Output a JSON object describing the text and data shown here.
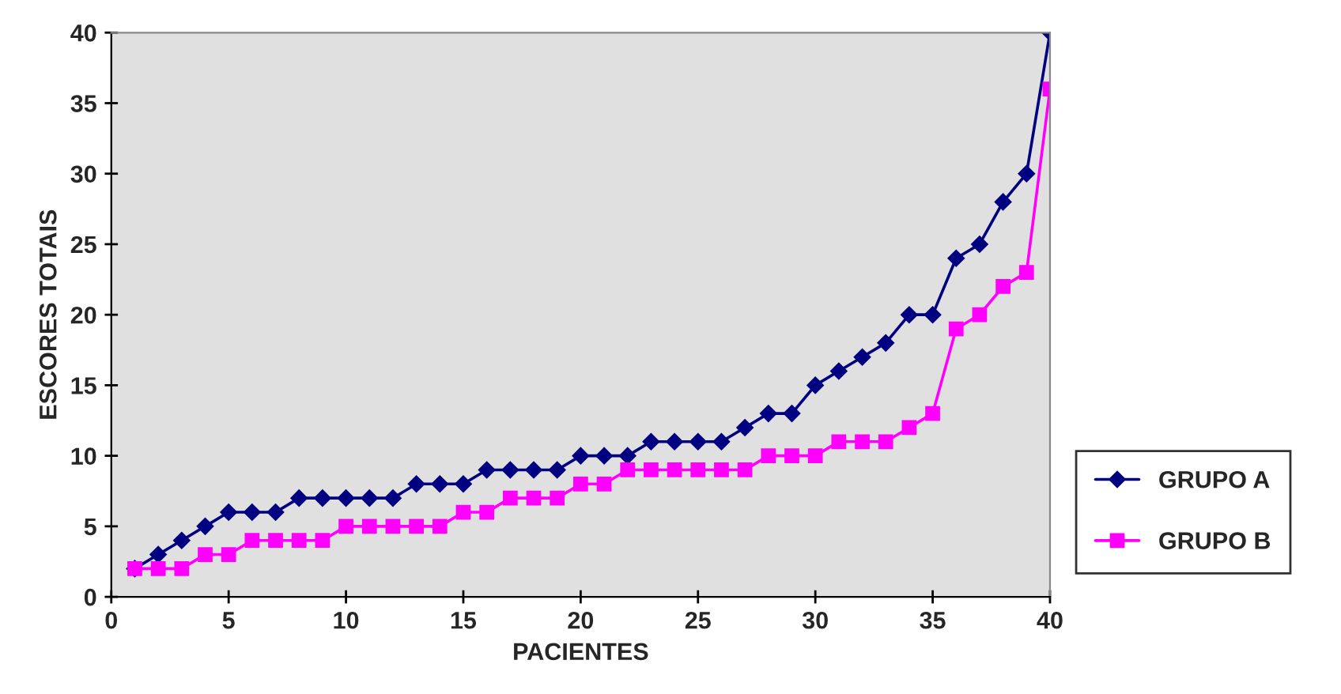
{
  "chart_data": {
    "type": "line",
    "xlabel": "PACIENTES",
    "ylabel": "ESCORES TOTAIS",
    "x": [
      1,
      2,
      3,
      4,
      5,
      6,
      7,
      8,
      9,
      10,
      11,
      12,
      13,
      14,
      15,
      16,
      17,
      18,
      19,
      20,
      21,
      22,
      23,
      24,
      25,
      26,
      27,
      28,
      29,
      30,
      31,
      32,
      33,
      34,
      35,
      36,
      37,
      38,
      39,
      40
    ],
    "series": [
      {
        "name": "GRUPO A",
        "color": "#000080",
        "marker": "diamond",
        "values": [
          2,
          3,
          4,
          5,
          6,
          6,
          6,
          7,
          7,
          7,
          7,
          7,
          8,
          8,
          8,
          9,
          9,
          9,
          9,
          10,
          10,
          10,
          11,
          11,
          11,
          11,
          12,
          13,
          13,
          15,
          16,
          17,
          18,
          20,
          20,
          24,
          25,
          28,
          30,
          40
        ]
      },
      {
        "name": "GRUPO B",
        "color": "#ff00ff",
        "marker": "square",
        "values": [
          2,
          2,
          2,
          3,
          3,
          4,
          4,
          4,
          4,
          5,
          5,
          5,
          5,
          5,
          6,
          6,
          7,
          7,
          7,
          8,
          8,
          9,
          9,
          9,
          9,
          9,
          9,
          10,
          10,
          10,
          11,
          11,
          11,
          12,
          13,
          19,
          20,
          22,
          23,
          36
        ]
      }
    ],
    "xlim": [
      0,
      40
    ],
    "xticks": [
      0,
      5,
      10,
      15,
      20,
      25,
      30,
      35,
      40
    ],
    "ylim": [
      0,
      40
    ],
    "yticks": [
      0,
      5,
      10,
      15,
      20,
      25,
      30,
      35,
      40
    ],
    "grid": false,
    "legend": "right",
    "line_style": "solid"
  }
}
